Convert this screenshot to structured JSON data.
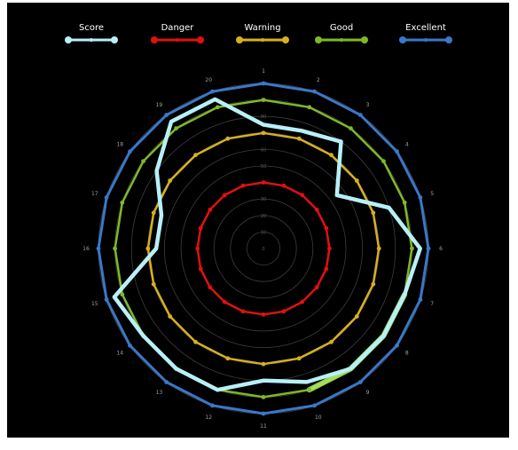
{
  "chart_data": {
    "type": "radar",
    "title": "",
    "axes": [
      "1",
      "2",
      "3",
      "4",
      "5",
      "6",
      "7",
      "8",
      "9",
      "10",
      "11",
      "12",
      "13",
      "14",
      "15",
      "16",
      "17",
      "18",
      "19",
      "20"
    ],
    "rlim": [
      0,
      100
    ],
    "ring_labels": [
      "0",
      "10",
      "20",
      "30",
      "40",
      "50",
      "60",
      "70",
      "80",
      "90",
      "100"
    ],
    "legend_position": "top",
    "grid": true,
    "background": "#000000",
    "series": [
      {
        "name": "Score",
        "color": "#b8f0f8",
        "line_width": 4.5,
        "marker": "none",
        "values": [
          75,
          75,
          80,
          55,
          80,
          95,
          90,
          90,
          90,
          85,
          80,
          90,
          90,
          90,
          95,
          65,
          65,
          80,
          95,
          95
        ]
      },
      {
        "name": "Danger",
        "color": "#e01010",
        "line_width": 2.5,
        "marker": "circle",
        "values": [
          40,
          40,
          40,
          40,
          40,
          40,
          40,
          40,
          40,
          40,
          40,
          40,
          40,
          40,
          40,
          40,
          40,
          40,
          40,
          40
        ]
      },
      {
        "name": "Warning",
        "color": "#d8b020",
        "line_width": 2.5,
        "marker": "circle",
        "values": [
          70,
          70,
          70,
          70,
          70,
          70,
          70,
          70,
          70,
          70,
          70,
          70,
          70,
          70,
          70,
          70,
          70,
          70,
          70,
          70
        ]
      },
      {
        "name": "Good",
        "color": "#80b828",
        "line_width": 2.5,
        "marker": "circle",
        "values": [
          90,
          90,
          90,
          90,
          90,
          90,
          90,
          90,
          90,
          90,
          90,
          90,
          90,
          90,
          90,
          90,
          90,
          90,
          90,
          90
        ]
      },
      {
        "name": "Excellent",
        "color": "#3a78c8",
        "line_width": 3,
        "marker": "circle",
        "values": [
          100,
          100,
          100,
          100,
          100,
          100,
          100,
          100,
          100,
          100,
          100,
          100,
          100,
          100,
          100,
          100,
          100,
          100,
          100,
          100
        ]
      }
    ],
    "highlight": {
      "series": "Good",
      "from_axis": "7",
      "to_axis": "10",
      "color": "#a8e860"
    }
  }
}
